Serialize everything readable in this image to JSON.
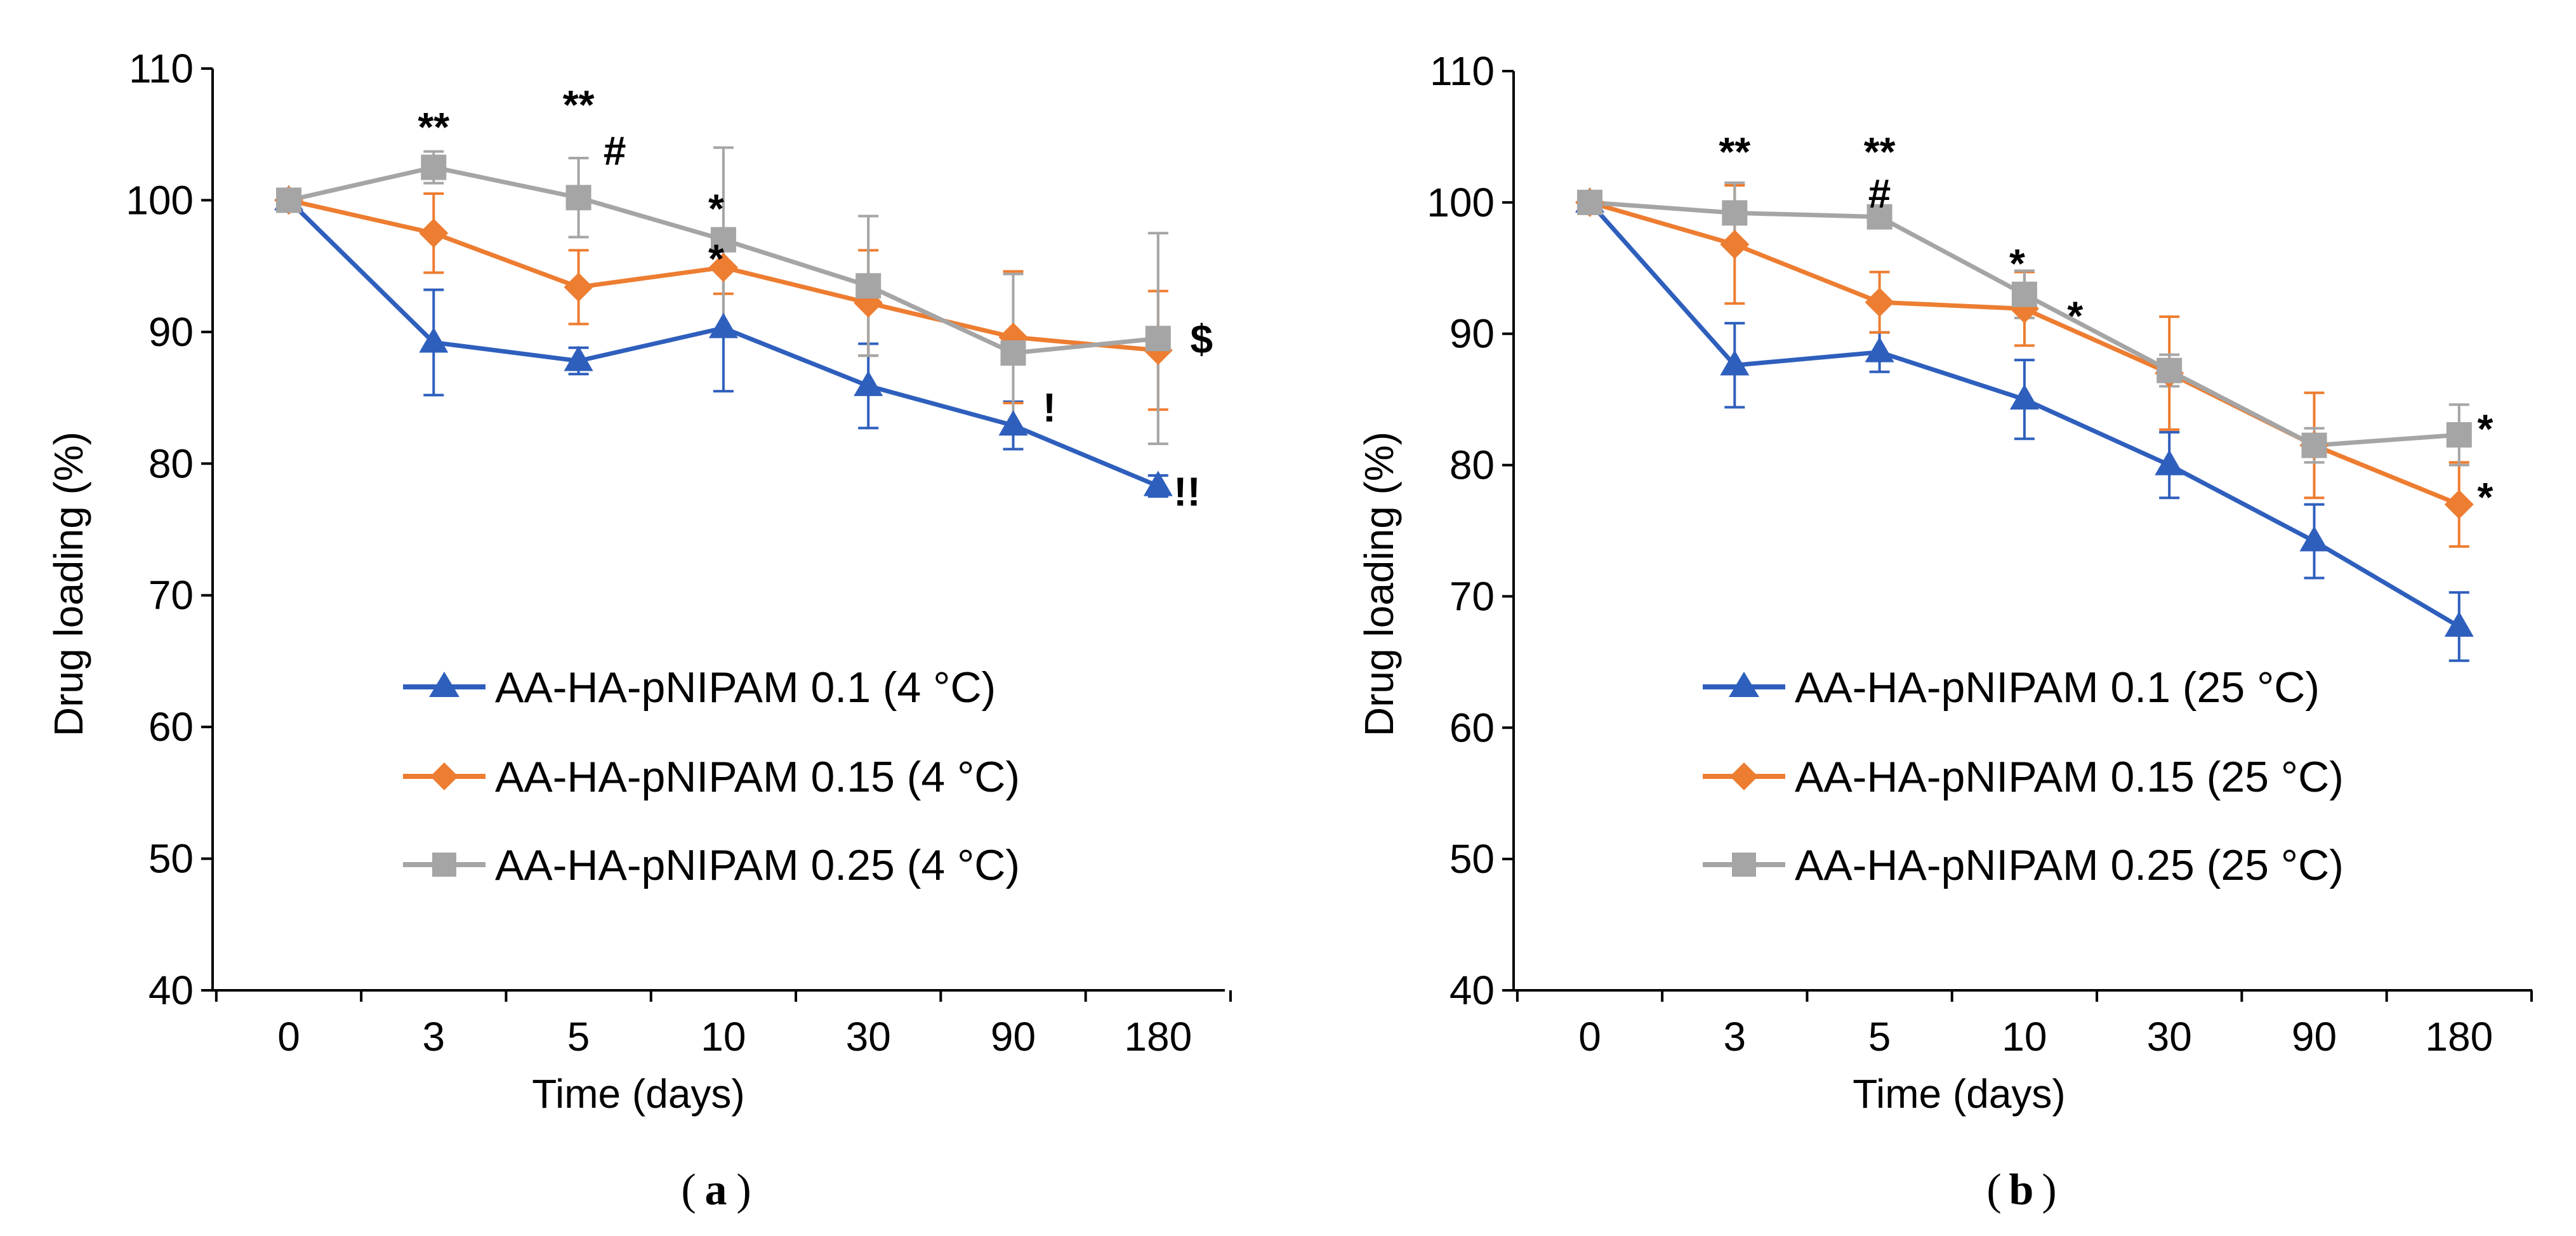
{
  "chart_data": [
    {
      "id": "a",
      "type": "line",
      "panel_label": "a",
      "xlabel": "Time (days)",
      "ylabel": "Drug loading (%)",
      "ylim": [
        40,
        110
      ],
      "yticks": [
        40,
        50,
        60,
        70,
        80,
        90,
        100,
        110
      ],
      "categories": [
        "0",
        "3",
        "5",
        "10",
        "30",
        "90",
        "180"
      ],
      "series": [
        {
          "name": "AA-HA-pNIPAM 0.1 (4 °C)",
          "color": "#2f5fbd",
          "marker": "triangle",
          "values": [
            100,
            89.2,
            87.8,
            90.3,
            85.9,
            82.9,
            78.3
          ],
          "errors": [
            0.5,
            4.0,
            1.0,
            4.8,
            3.2,
            1.8,
            0.8
          ]
        },
        {
          "name": "AA-HA-pNIPAM 0.15 (4 °C)",
          "color": "#ed7d31",
          "marker": "diamond",
          "values": [
            100,
            97.5,
            93.4,
            94.9,
            92.2,
            89.6,
            88.6
          ],
          "errors": [
            0.8,
            3.0,
            2.8,
            2.0,
            4.0,
            5.0,
            4.5
          ]
        },
        {
          "name": "AA-HA-pNIPAM 0.25 (4 °C)",
          "color": "#a5a5a5",
          "marker": "square",
          "values": [
            100,
            102.5,
            100.2,
            97.0,
            93.5,
            88.4,
            89.5
          ],
          "errors": [
            0.5,
            1.2,
            3.0,
            7.0,
            5.3,
            6.0,
            8.0
          ]
        }
      ],
      "annotations": [
        {
          "text": "**",
          "x_index": 1,
          "y": 104.5
        },
        {
          "text": "**",
          "x_index": 2,
          "y": 106.2
        },
        {
          "text": "#",
          "x_index": 2.25,
          "y": 102.7
        },
        {
          "text": "*",
          "x_index": 2.95,
          "y": 98.3
        },
        {
          "text": "*",
          "x_index": 2.95,
          "y": 94.5
        },
        {
          "text": "!",
          "x_index": 5.25,
          "y": 83.2
        },
        {
          "text": "!!",
          "x_index": 6.2,
          "y": 76.8
        },
        {
          "text": "$",
          "x_index": 6.3,
          "y": 88.4
        }
      ]
    },
    {
      "id": "b",
      "type": "line",
      "panel_label": "b",
      "xlabel": "Time (days)",
      "ylabel": "Drug loading (%)",
      "ylim": [
        40,
        110
      ],
      "yticks": [
        40,
        50,
        60,
        70,
        80,
        90,
        100,
        110
      ],
      "categories": [
        "0",
        "3",
        "5",
        "10",
        "30",
        "90",
        "180"
      ],
      "series": [
        {
          "name": "AA-HA-pNIPAM 0.1 (25 °C)",
          "color": "#2f5fbd",
          "marker": "triangle",
          "values": [
            100,
            87.6,
            88.6,
            85.0,
            80.0,
            74.2,
            67.7
          ],
          "errors": [
            0.5,
            3.2,
            1.5,
            3.0,
            2.5,
            2.8,
            2.6
          ]
        },
        {
          "name": "AA-HA-pNIPAM 0.15 (25 °C)",
          "color": "#ed7d31",
          "marker": "diamond",
          "values": [
            100,
            96.8,
            92.4,
            91.9,
            87.0,
            81.5,
            77.0
          ],
          "errors": [
            0.8,
            4.5,
            2.3,
            2.8,
            4.3,
            4.0,
            3.2
          ]
        },
        {
          "name": "AA-HA-pNIPAM 0.25 (25 °C)",
          "color": "#a5a5a5",
          "marker": "square",
          "values": [
            100,
            99.2,
            98.9,
            93.0,
            87.2,
            81.5,
            82.3
          ],
          "errors": [
            0.5,
            2.3,
            0.8,
            1.8,
            1.2,
            1.3,
            2.3
          ]
        }
      ],
      "annotations": [
        {
          "text": "**",
          "x_index": 1,
          "y": 102.8
        },
        {
          "text": "**",
          "x_index": 2,
          "y": 102.8
        },
        {
          "text": "#",
          "x_index": 2,
          "y": 99.6
        },
        {
          "text": "*",
          "x_index": 2.95,
          "y": 94.3
        },
        {
          "text": "*",
          "x_index": 3.35,
          "y": 90.3
        },
        {
          "text": "*",
          "x_index": 6.18,
          "y": 81.7
        },
        {
          "text": "*",
          "x_index": 6.18,
          "y": 76.5
        }
      ]
    }
  ]
}
